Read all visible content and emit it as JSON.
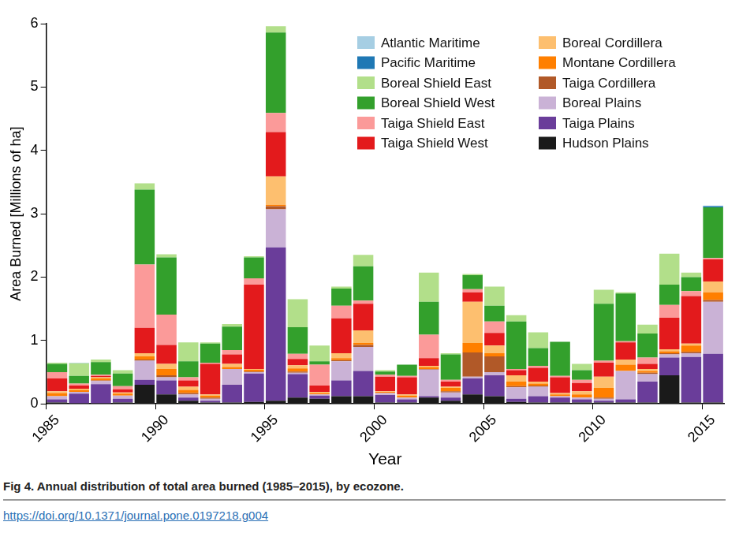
{
  "chart_data": {
    "type": "bar",
    "stacked": true,
    "grid": false,
    "legend": "upper right",
    "title": "Fig 4. Annual distribution of total area burned (1985–2015), by ecozone.",
    "annotations": [
      "https://doi.org/10.1371/journal.pone.0197218.g004"
    ],
    "x_label": "Year",
    "y_label": "Area Burned [Millions of ha]",
    "categories": [
      "1985",
      null,
      null,
      null,
      null,
      "1990",
      null,
      null,
      null,
      null,
      "1995",
      null,
      null,
      null,
      null,
      "2000",
      null,
      null,
      null,
      null,
      "2005",
      null,
      null,
      null,
      null,
      "2010",
      null,
      null,
      null,
      null,
      "2015"
    ],
    "ylim": [
      0,
      6
    ],
    "yticks": [
      0,
      1,
      2,
      3,
      4,
      5,
      6
    ],
    "series": [
      {
        "name": "Atlantic Maritime",
        "color": "#a6cee3",
        "values": [
          0,
          0.01,
          0,
          0,
          0,
          0,
          0,
          0,
          0,
          0,
          0,
          0,
          0,
          0,
          0,
          0,
          0,
          0,
          0,
          0,
          0,
          0,
          0,
          0,
          0,
          0,
          0,
          0,
          0,
          0,
          0.01
        ]
      },
      {
        "name": "Pacific Maritime",
        "color": "#1f78b4",
        "values": [
          0,
          0,
          0,
          0,
          0,
          0,
          0,
          0,
          0,
          0,
          0,
          0,
          0,
          0,
          0,
          0,
          0,
          0,
          0,
          0,
          0,
          0,
          0,
          0,
          0,
          0,
          0,
          0,
          0,
          0,
          0.02
        ]
      },
      {
        "name": "Boreal Shield East",
        "color": "#b2df8a",
        "values": [
          0.02,
          0.2,
          0.04,
          0.05,
          0.1,
          0.05,
          0.3,
          0.02,
          0.04,
          0.02,
          0.1,
          0.44,
          0.25,
          0.03,
          0.18,
          0.02,
          0,
          0.46,
          0.02,
          0.02,
          0.3,
          0.1,
          0.25,
          0,
          0.1,
          0.22,
          0.02,
          0.14,
          0.49,
          0.07,
          0
        ]
      },
      {
        "name": "Boreal Shield West",
        "color": "#33a02c",
        "values": [
          0.13,
          0.12,
          0.2,
          0.2,
          1.18,
          0.9,
          0.25,
          0.3,
          0.37,
          0.33,
          1.27,
          0.42,
          0.05,
          0.27,
          0.54,
          0.05,
          0.18,
          0.52,
          0.4,
          0.22,
          0.25,
          0.75,
          0.28,
          0.54,
          0.15,
          0.9,
          0.75,
          0.38,
          0.32,
          0.22,
          0.8
        ]
      },
      {
        "name": "Taiga Shield East",
        "color": "#fb9a99",
        "values": [
          0.1,
          0.03,
          0.02,
          0.05,
          1.0,
          0.48,
          0.05,
          0.02,
          0.07,
          0.1,
          0.3,
          0.08,
          0.33,
          0.2,
          0.05,
          0.03,
          0.02,
          0.37,
          0.03,
          0.05,
          0.18,
          0.02,
          0.03,
          0.02,
          0.05,
          0.03,
          0.02,
          0.1,
          0.2,
          0.08,
          0.02
        ]
      },
      {
        "name": "Taiga Shield West",
        "color": "#e31a1c",
        "values": [
          0.2,
          0.05,
          0.02,
          0.05,
          0.4,
          0.3,
          0.1,
          0.48,
          0.15,
          1.33,
          0.7,
          0.1,
          0.1,
          0.55,
          0.42,
          0.23,
          0.27,
          0.12,
          0.08,
          0.15,
          0.2,
          0.08,
          0.22,
          0.25,
          0.13,
          0.22,
          0.27,
          0.08,
          0.5,
          0.75,
          0.35
        ]
      },
      {
        "name": "Boreal Cordillera",
        "color": "#fdbf6f",
        "values": [
          0.03,
          0.02,
          0.02,
          0.02,
          0.05,
          0.08,
          0.05,
          0.02,
          0.05,
          0.01,
          0.45,
          0.05,
          0.02,
          0.08,
          0.2,
          0.01,
          0.02,
          0.02,
          0.02,
          0.65,
          0.12,
          0.1,
          0.03,
          0.02,
          0.05,
          0.18,
          0.08,
          0.03,
          0.03,
          0.03,
          0.17
        ]
      },
      {
        "name": "Montane Cordillera",
        "color": "#ff7f00",
        "values": [
          0.05,
          0.03,
          0.03,
          0.03,
          0.05,
          0.1,
          0.05,
          0.03,
          0.03,
          0.03,
          0.02,
          0.05,
          0.02,
          0.03,
          0.03,
          0.02,
          0.03,
          0.03,
          0.05,
          0.15,
          0.05,
          0.07,
          0.03,
          0.03,
          0.05,
          0.15,
          0.1,
          0.03,
          0.03,
          0.1,
          0.12
        ]
      },
      {
        "name": "Taiga Cordillera",
        "color": "#b15928",
        "values": [
          0,
          0,
          0.01,
          0,
          0.02,
          0.03,
          0.02,
          0.02,
          0,
          0.01,
          0.05,
          0.02,
          0,
          0.02,
          0.03,
          0,
          0,
          0.01,
          0.02,
          0.38,
          0.25,
          0.02,
          0.02,
          0,
          0,
          0.02,
          0,
          0.02,
          0.02,
          0.02,
          0.03
        ]
      },
      {
        "name": "Boreal Plains",
        "color": "#cab2d6",
        "values": [
          0.05,
          0.03,
          0.05,
          0.05,
          0.3,
          0.05,
          0.05,
          0.03,
          0.25,
          0.02,
          0.6,
          0.02,
          0.02,
          0.3,
          0.38,
          0.03,
          0.03,
          0.42,
          0.08,
          0.03,
          0.05,
          0.18,
          0.15,
          0.02,
          0.03,
          0.03,
          0.45,
          0.12,
          0.05,
          0.06,
          0.82
        ]
      },
      {
        "name": "Taiga Plains",
        "color": "#6a3d9a",
        "values": [
          0.05,
          0.15,
          0.3,
          0.06,
          0.08,
          0.22,
          0.05,
          0.03,
          0.28,
          0.45,
          2.42,
          0.37,
          0.05,
          0.25,
          0.4,
          0.12,
          0.05,
          0.02,
          0.05,
          0.25,
          0.33,
          0.05,
          0.1,
          0.08,
          0.05,
          0.03,
          0.05,
          0.33,
          0.28,
          0.72,
          0.77
        ]
      },
      {
        "name": "Hudson Plains",
        "color": "#1a1a1a",
        "values": [
          0.02,
          0.01,
          0.01,
          0.02,
          0.3,
          0.15,
          0.05,
          0.02,
          0.02,
          0.03,
          0.05,
          0.1,
          0.08,
          0.12,
          0.12,
          0.02,
          0.02,
          0.1,
          0.05,
          0.15,
          0.12,
          0.03,
          0.02,
          0.02,
          0.02,
          0.02,
          0.02,
          0.02,
          0.45,
          0.02,
          0.02
        ]
      }
    ]
  }
}
